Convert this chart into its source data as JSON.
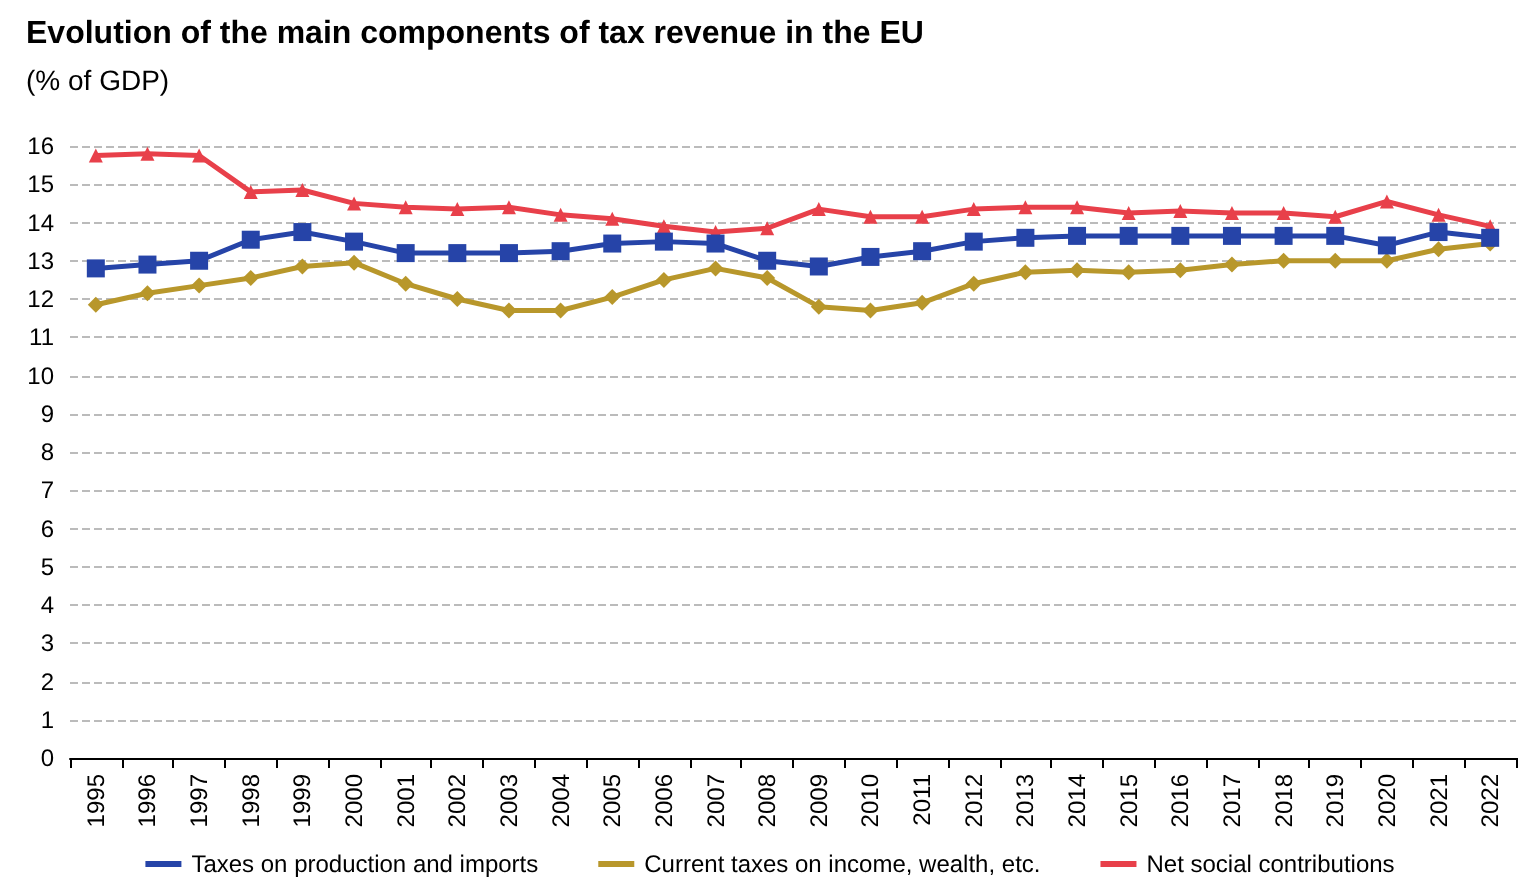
{
  "chart_data": {
    "type": "line",
    "title": "Evolution of the main components of tax revenue in the EU",
    "subtitle": "(% of GDP)",
    "categories": [
      "1995",
      "1996",
      "1997",
      "1998",
      "1999",
      "2000",
      "2001",
      "2002",
      "2003",
      "2004",
      "2005",
      "2006",
      "2007",
      "2008",
      "2009",
      "2010",
      "2011",
      "2012",
      "2013",
      "2014",
      "2015",
      "2016",
      "2017",
      "2018",
      "2019",
      "2020",
      "2021",
      "2022"
    ],
    "series": [
      {
        "name": "Taxes on production and imports",
        "color": "#2644a8",
        "marker": "square",
        "values": [
          12.8,
          12.9,
          13.0,
          13.55,
          13.75,
          13.5,
          13.2,
          13.2,
          13.2,
          13.25,
          13.45,
          13.5,
          13.45,
          13.0,
          12.85,
          13.1,
          13.25,
          13.5,
          13.6,
          13.65,
          13.65,
          13.65,
          13.65,
          13.65,
          13.65,
          13.4,
          13.75,
          13.6
        ]
      },
      {
        "name": "Current taxes on income, wealth, etc.",
        "color": "#b8972b",
        "marker": "diamond",
        "values": [
          11.85,
          12.15,
          12.35,
          12.55,
          12.85,
          12.95,
          12.4,
          12.0,
          11.7,
          11.7,
          12.05,
          12.5,
          12.8,
          12.55,
          11.8,
          11.7,
          11.9,
          12.4,
          12.7,
          12.75,
          12.7,
          12.75,
          12.9,
          13.0,
          13.0,
          13.0,
          13.3,
          13.45
        ]
      },
      {
        "name": "Net social contributions",
        "color": "#e8404a",
        "marker": "triangle",
        "values": [
          15.75,
          15.8,
          15.75,
          14.8,
          14.85,
          14.5,
          14.4,
          14.35,
          14.4,
          14.2,
          14.1,
          13.9,
          13.75,
          13.85,
          14.35,
          14.15,
          14.15,
          14.35,
          14.4,
          14.4,
          14.25,
          14.3,
          14.25,
          14.25,
          14.15,
          14.55,
          14.2,
          13.9
        ]
      }
    ],
    "ylim": [
      0,
      16
    ],
    "yticks": [
      0,
      1,
      2,
      3,
      4,
      5,
      6,
      7,
      8,
      9,
      10,
      11,
      12,
      13,
      14,
      15,
      16
    ],
    "grid": "y",
    "legend": "bottom",
    "line_style": "solid"
  }
}
